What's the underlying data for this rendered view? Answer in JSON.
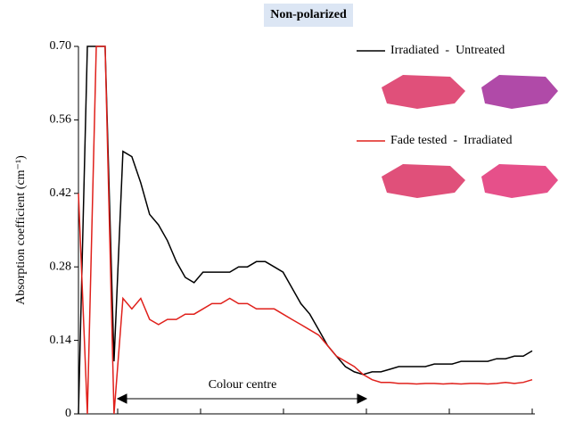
{
  "chart_data": {
    "type": "line",
    "title": "Non-polarized",
    "y_label": "Absorption coefficient (cm⁻¹)",
    "annotation": "Colour centre",
    "ylim": [
      0,
      0.7
    ],
    "yticks": [
      0,
      0.14,
      0.28,
      0.42,
      0.56,
      {
        "value": 0.7,
        "label": "0.70"
      }
    ],
    "legend": "upper right",
    "series": [
      {
        "name": "Irradiated  -  Untreated",
        "color": "#000000",
        "values": [
          0.0,
          0.7,
          0.7,
          0.7,
          0.1,
          0.5,
          0.49,
          0.44,
          0.38,
          0.36,
          0.33,
          0.29,
          0.26,
          0.25,
          0.27,
          0.27,
          0.27,
          0.27,
          0.28,
          0.28,
          0.29,
          0.29,
          0.28,
          0.27,
          0.24,
          0.21,
          0.19,
          0.16,
          0.13,
          0.11,
          0.09,
          0.08,
          0.075,
          0.08,
          0.08,
          0.085,
          0.09,
          0.09,
          0.09,
          0.09,
          0.095,
          0.095,
          0.095,
          0.1,
          0.1,
          0.1,
          0.1,
          0.105,
          0.105,
          0.11,
          0.11,
          0.12
        ]
      },
      {
        "name": "Fade tested  -  Irradiated",
        "color": "#e0201b",
        "values": [
          0.42,
          0.0,
          0.7,
          0.7,
          0.0,
          0.22,
          0.2,
          0.22,
          0.18,
          0.17,
          0.18,
          0.18,
          0.19,
          0.19,
          0.2,
          0.21,
          0.21,
          0.22,
          0.21,
          0.21,
          0.2,
          0.2,
          0.2,
          0.19,
          0.18,
          0.17,
          0.16,
          0.15,
          0.13,
          0.11,
          0.1,
          0.09,
          0.075,
          0.065,
          0.06,
          0.06,
          0.058,
          0.058,
          0.057,
          0.058,
          0.058,
          0.057,
          0.058,
          0.057,
          0.058,
          0.058,
          0.057,
          0.058,
          0.06,
          0.058,
          0.06,
          0.065
        ]
      }
    ]
  }
}
